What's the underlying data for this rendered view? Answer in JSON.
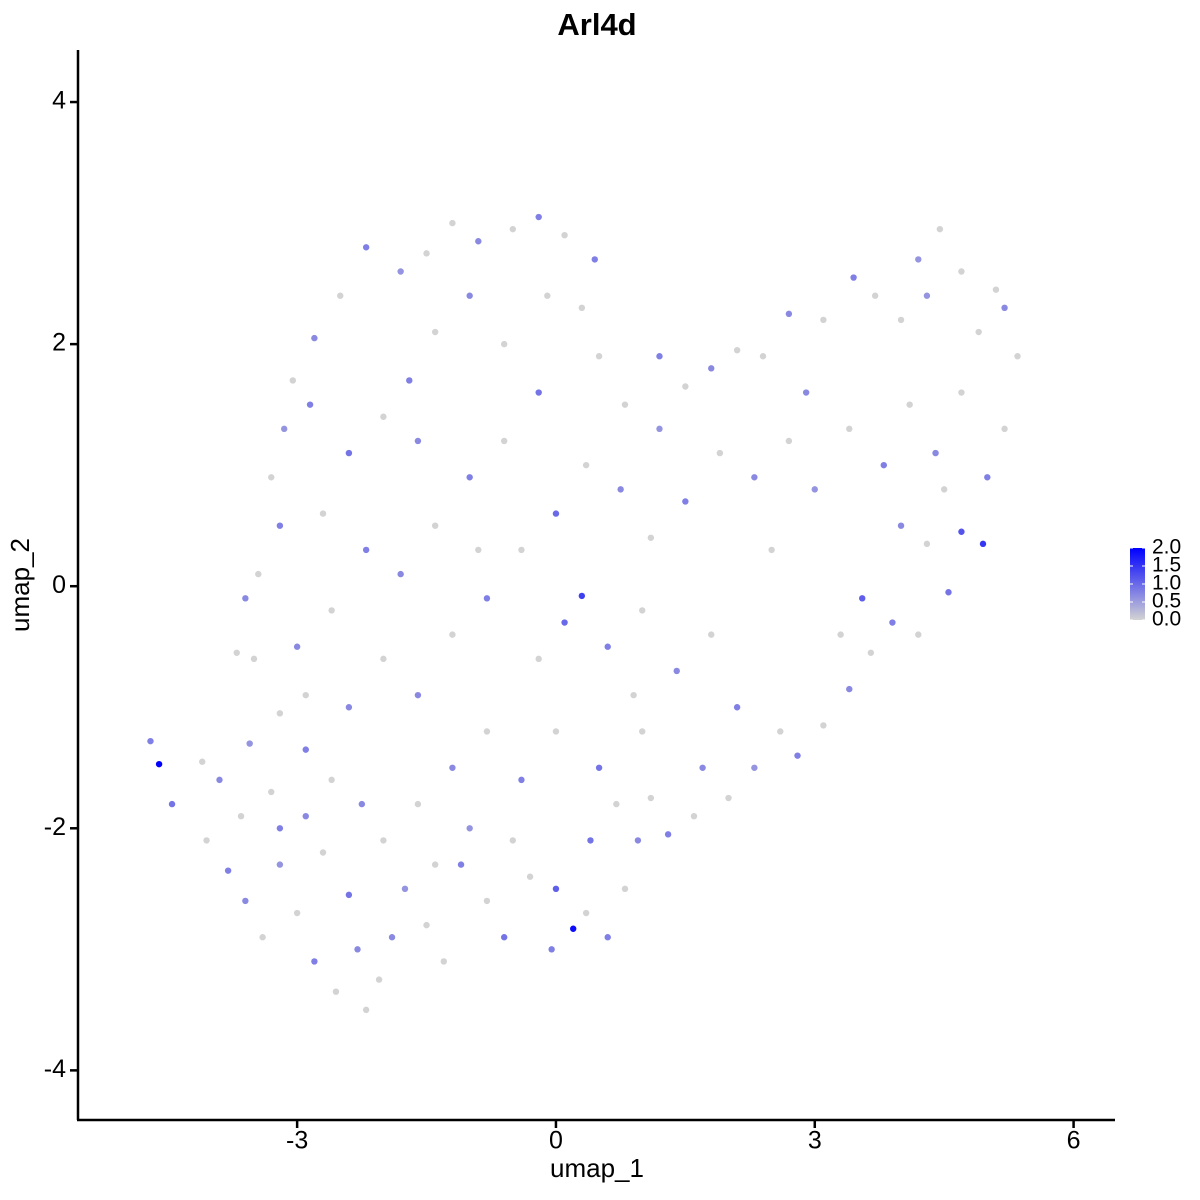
{
  "chart_data": {
    "type": "scatter",
    "title": "Arl4d",
    "x_label": "umap_1",
    "y_label": "umap_2",
    "xlim": [
      -5.54,
      6.48
    ],
    "ylim": [
      -4.41,
      4.43
    ],
    "xticks": [
      -3,
      0,
      3,
      6
    ],
    "yticks": [
      -4,
      -2,
      0,
      2,
      4
    ],
    "colors": [
      "#d3d3d3",
      "#0000ff"
    ],
    "colorbar_lim": [
      0,
      2.0
    ],
    "colorbar_ticks": [
      {
        "value": 0,
        "label": "0.0"
      },
      {
        "value": 0.5,
        "label": "0.5"
      },
      {
        "value": 1.0,
        "label": "1.0"
      },
      {
        "value": 1.5,
        "label": "1.5"
      },
      {
        "value": 2.0,
        "label": "2.0"
      }
    ],
    "x": [
      -4.6,
      -4.7,
      -4.45,
      -4.1,
      -3.9,
      -4.05,
      -3.8,
      -3.6,
      -3.4,
      -3.2,
      -3.0,
      -2.8,
      -2.55,
      -2.3,
      -2.05,
      -2.4,
      -2.7,
      -2.9,
      -3.3,
      -3.55,
      -3.2,
      -2.9,
      -2.6,
      -2.25,
      -2.0,
      -1.75,
      -1.5,
      -1.3,
      -1.1,
      -0.8,
      -0.6,
      -0.3,
      0,
      -0.05,
      0.35,
      0.6,
      0.8,
      0.95,
      0.7,
      0.4,
      0.2,
      1.1,
      1.3,
      1.6,
      1.7,
      2.0,
      2.3,
      2.6,
      2.8,
      3.1,
      3.4,
      3.65,
      3.9,
      4.2,
      4.55,
      4.3,
      4.7,
      4.95,
      5.0,
      5.2,
      5.35,
      5.2,
      4.9,
      4.7,
      4.45,
      4.3,
      4.0,
      3.7,
      3.45,
      3.1,
      2.7,
      2.4,
      2.1,
      1.8,
      1.5,
      1.2,
      0.8,
      0.5,
      0.3,
      0.45,
      0.1,
      -0.2,
      -0.5,
      -0.9,
      -1.2,
      -1.5,
      -1.8,
      -2.2,
      -2.5,
      -2.8,
      -3.05,
      -3.15,
      -3.3,
      -3.2,
      -3.45,
      -3.6,
      -3.5,
      -3.0,
      -2.6,
      -2.2,
      -2.7,
      -2.4,
      -2.0,
      -1.7,
      -1.4,
      -1.0,
      -0.6,
      -0.2,
      -0.6,
      -1.0,
      -1.4,
      -1.8,
      -2.0,
      -1.6,
      -1.2,
      -0.8,
      -0.4,
      0,
      0.35,
      0.75,
      1.1,
      1.5,
      1.9,
      2.3,
      2.7,
      3.0,
      3.4,
      3.8,
      4.1,
      4.4,
      4.7,
      4.5,
      4.0,
      3.55,
      3.3,
      0.3,
      0.1,
      -0.2,
      0.6,
      1.0,
      1.4,
      1.8,
      2.1,
      1.0,
      0.5,
      0.0,
      -0.4,
      -0.8,
      -1.2,
      -1.6,
      -1.0,
      -0.5,
      -2.4,
      -2.9,
      -3.7,
      -1.9,
      -2.2,
      -3.65,
      2.5,
      1.2,
      -0.1,
      -1.6,
      -2.85,
      5.1,
      4.2,
      -0.9,
      0.9,
      2.9,
      -3.2,
      -1.4
    ],
    "y": [
      -1.47,
      -1.28,
      -1.8,
      -1.45,
      -1.6,
      -2.1,
      -2.35,
      -2.6,
      -2.9,
      -2.3,
      -2.7,
      -3.1,
      -3.35,
      -3.0,
      -3.25,
      -2.55,
      -2.2,
      -1.9,
      -1.7,
      -1.3,
      -1.05,
      -1.35,
      -1.6,
      -1.8,
      -2.1,
      -2.5,
      -2.8,
      -3.1,
      -2.3,
      -2.6,
      -2.9,
      -2.4,
      -2.5,
      -3.0,
      -2.7,
      -2.9,
      -2.5,
      -2.1,
      -1.8,
      -2.1,
      -2.83,
      -1.75,
      -2.05,
      -1.9,
      -1.5,
      -1.75,
      -1.5,
      -1.2,
      -1.4,
      -1.15,
      -0.85,
      -0.55,
      -0.3,
      -0.4,
      -0.05,
      0.35,
      0.45,
      0.35,
      0.9,
      1.3,
      1.9,
      2.3,
      2.1,
      2.6,
      2.95,
      2.4,
      2.2,
      2.4,
      2.55,
      2.2,
      2.25,
      1.9,
      1.95,
      1.8,
      1.65,
      1.3,
      1.5,
      1.9,
      2.3,
      2.7,
      2.9,
      3.05,
      2.95,
      2.85,
      3.0,
      2.75,
      2.6,
      2.8,
      2.4,
      2.05,
      1.7,
      1.3,
      0.9,
      0.5,
      0.1,
      -0.1,
      -0.6,
      -0.5,
      -0.2,
      0.3,
      0.6,
      1.1,
      1.4,
      1.7,
      2.1,
      2.4,
      2.0,
      1.6,
      1.2,
      0.9,
      0.5,
      0.1,
      -0.6,
      -0.9,
      -0.4,
      -0.1,
      0.3,
      0.6,
      1.0,
      0.8,
      0.4,
      0.7,
      1.1,
      0.9,
      1.2,
      0.8,
      1.3,
      1.0,
      1.5,
      1.1,
      1.6,
      0.8,
      0.5,
      -0.1,
      -0.4,
      -0.08,
      -0.3,
      -0.6,
      -0.5,
      -0.2,
      -0.7,
      -0.4,
      -1.0,
      -1.2,
      -1.5,
      -1.2,
      -1.6,
      -1.2,
      -1.5,
      -1.8,
      -2.0,
      -2.1,
      -1.0,
      -0.9,
      -0.55,
      -2.9,
      -3.5,
      -1.9,
      0.3,
      1.9,
      2.4,
      1.2,
      1.5,
      2.45,
      2.7,
      0.3,
      -0.9,
      1.6,
      -2.0,
      -2.3
    ],
    "values": [
      2.0,
      0.8,
      0.9,
      0,
      0.7,
      0,
      0.8,
      0.7,
      0,
      0.6,
      0,
      0.8,
      0,
      0.7,
      0,
      0.9,
      0,
      0.7,
      0,
      0.6,
      0,
      0.8,
      0,
      0.7,
      0,
      0.6,
      0,
      0,
      0.8,
      0,
      0.9,
      0,
      1.1,
      0.8,
      0,
      0.8,
      0,
      0.7,
      0,
      0.9,
      1.9,
      0,
      0.8,
      0,
      0.7,
      0,
      0.6,
      0,
      0.8,
      0,
      0.7,
      0,
      0.8,
      0,
      0.9,
      0,
      1.2,
      1.5,
      0.8,
      0,
      0,
      0.7,
      0,
      0,
      0,
      0.6,
      0,
      0,
      0.8,
      0,
      0.7,
      0,
      0,
      0.7,
      0,
      0.6,
      0,
      0,
      0,
      0.8,
      0,
      0.8,
      0,
      0.7,
      0,
      0,
      0.6,
      0.8,
      0,
      0.7,
      0,
      0.6,
      0,
      0.8,
      0,
      0.7,
      0,
      0.7,
      0,
      0.8,
      0,
      0.9,
      0,
      0.8,
      0,
      0.7,
      0,
      0.9,
      0,
      0.8,
      0,
      0.7,
      0,
      0.7,
      0,
      0.8,
      0,
      1.0,
      0,
      0.7,
      0,
      0.8,
      0,
      0.7,
      0,
      0.6,
      0,
      0.8,
      0,
      0.7,
      0,
      0,
      0.7,
      1.1,
      0,
      1.4,
      1.0,
      0,
      0.8,
      0,
      0.7,
      0,
      0.8,
      0,
      0.9,
      0,
      0.8,
      0,
      0.7,
      0,
      0.6,
      0,
      0.7,
      0,
      0,
      0.7,
      0,
      0,
      0,
      0.8,
      0,
      0.7,
      0.8,
      0,
      0.6,
      0,
      0,
      0.7,
      0.8,
      0
    ]
  }
}
